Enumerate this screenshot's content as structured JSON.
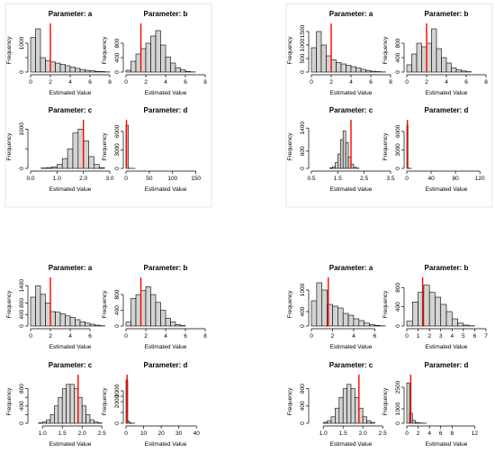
{
  "theme": {
    "bar_fill": "#d3d3d3",
    "bar_stroke": "#000000",
    "estimate_line": "#ff0000",
    "axis": "#000000",
    "panel_border": "#e6e6e6"
  },
  "chart_data": [
    {
      "type": "bar",
      "title": "Parameter: a",
      "xlabel": "Estimated Value",
      "ylabel": "Frequency",
      "bin_width": 0.5,
      "bins_start": 0,
      "values": [
        1200,
        1500,
        500,
        400,
        350,
        310,
        270,
        220,
        170,
        130,
        90,
        60,
        40,
        25,
        15,
        5
      ],
      "xlim": [
        0,
        8
      ],
      "x_ticks": [
        "0",
        "2",
        "4",
        "6",
        "8"
      ],
      "ylim": [
        0,
        1500
      ],
      "y_ticks": [
        "0",
        "",
        "1000"
      ],
      "estimate": 2
    },
    {
      "type": "bar",
      "title": "Parameter: b",
      "xlabel": "Estimated Value",
      "ylabel": "Frequency",
      "bin_width": 0.5,
      "bins_start": 0,
      "values": [
        50,
        300,
        500,
        650,
        800,
        1000,
        1150,
        750,
        420,
        250,
        120,
        60,
        20,
        5
      ],
      "xlim": [
        0,
        8
      ],
      "x_ticks": [
        "0",
        "2",
        "4",
        "6",
        "8"
      ],
      "ylim": [
        0,
        1200
      ],
      "y_ticks": [
        "0",
        "400",
        "800"
      ],
      "estimate": 1.5
    },
    {
      "type": "bar",
      "title": "Parameter: c",
      "xlabel": "Estimated Value",
      "ylabel": "Frequency",
      "bin_width": 0.2,
      "bins_start": 0.4,
      "values": [
        10,
        20,
        40,
        100,
        250,
        500,
        900,
        1000,
        700,
        300,
        100,
        20
      ],
      "xlim": [
        0,
        3
      ],
      "x_ticks": [
        "0.0",
        "1.0",
        "2.0",
        "3.0"
      ],
      "ylim": [
        0,
        1100
      ],
      "y_ticks": [
        "0",
        "",
        "1000"
      ],
      "estimate": 2
    },
    {
      "type": "bar",
      "title": "Parameter: d",
      "xlabel": "Estimated Value",
      "ylabel": "Frequency",
      "bin_width": 5,
      "bins_start": 0,
      "values": [
        7000,
        30,
        10,
        5
      ],
      "xlim": [
        0,
        170
      ],
      "x_ticks": [
        "0",
        "50",
        "100",
        "150"
      ],
      "ylim": [
        0,
        7000
      ],
      "y_ticks": [
        "0",
        "3000",
        "6000"
      ],
      "estimate": 1
    },
    {
      "type": "bar",
      "title": "Parameter: a",
      "xlabel": "Estimated Value",
      "ylabel": "Frequency",
      "bin_width": 0.5,
      "bins_start": 0,
      "values": [
        900,
        1500,
        1000,
        600,
        450,
        350,
        300,
        250,
        200,
        150,
        100,
        60,
        30,
        15,
        5
      ],
      "xlim": [
        0,
        8
      ],
      "x_ticks": [
        "0",
        "2",
        "4",
        "6",
        "8"
      ],
      "ylim": [
        0,
        1600
      ],
      "y_ticks": [
        "0",
        "500",
        "1000",
        "1500"
      ],
      "estimate": 2
    },
    {
      "type": "bar",
      "title": "Parameter: b",
      "xlabel": "Estimated Value",
      "ylabel": "Frequency",
      "bin_width": 0.5,
      "bins_start": 0,
      "values": [
        200,
        500,
        800,
        700,
        800,
        1200,
        650,
        400,
        250,
        120,
        60,
        30,
        10
      ],
      "xlim": [
        0,
        8
      ],
      "x_ticks": [
        "0",
        "2",
        "4",
        "6",
        "8"
      ],
      "ylim": [
        0,
        1200
      ],
      "y_ticks": [
        "0",
        "400",
        "800"
      ],
      "estimate": 2
    },
    {
      "type": "bar",
      "title": "Parameter: c",
      "xlabel": "Estimated Value",
      "ylabel": "Frequency",
      "bin_width": 0.1,
      "bins_start": 1.2,
      "values": [
        20,
        60,
        200,
        500,
        1000,
        1300,
        900,
        400,
        150,
        40,
        10
      ],
      "xlim": [
        0.5,
        3.5
      ],
      "x_ticks": [
        "0.5",
        "1.5",
        "2.5",
        "3.5"
      ],
      "ylim": [
        0,
        1500
      ],
      "y_ticks": [
        "0",
        "600",
        "1400"
      ],
      "estimate": 2
    },
    {
      "type": "bar",
      "title": "Parameter: d",
      "xlabel": "Estimated Value",
      "ylabel": "Frequency",
      "bin_width": 2,
      "bins_start": 0,
      "values": [
        7000,
        40,
        15,
        5
      ],
      "xlim": [
        0,
        130
      ],
      "x_ticks": [
        "0",
        "40",
        "80",
        "120"
      ],
      "ylim": [
        0,
        7000
      ],
      "y_ticks": [
        "0",
        "3000",
        "6000"
      ],
      "estimate": 1
    },
    {
      "type": "bar",
      "title": "Parameter: a",
      "xlabel": "Estimated Value",
      "ylabel": "Frequency",
      "bin_width": 0.5,
      "bins_start": 0,
      "values": [
        1000,
        1400,
        1100,
        800,
        500,
        480,
        420,
        350,
        300,
        220,
        150,
        100,
        60,
        30,
        10
      ],
      "xlim": [
        0,
        8
      ],
      "x_ticks": [
        "0",
        "2",
        "4",
        "6"
      ],
      "ylim": [
        0,
        1500
      ],
      "y_ticks": [
        "0",
        "400",
        "800",
        "1400"
      ],
      "estimate": 2
    },
    {
      "type": "bar",
      "title": "Parameter: b",
      "xlabel": "Estimated Value",
      "ylabel": "Frequency",
      "bin_width": 0.5,
      "bins_start": 0,
      "values": [
        100,
        700,
        800,
        900,
        1000,
        800,
        600,
        400,
        200,
        100,
        40,
        10
      ],
      "xlim": [
        0,
        8
      ],
      "x_ticks": [
        "0",
        "2",
        "4",
        "6",
        "8"
      ],
      "ylim": [
        0,
        1100
      ],
      "y_ticks": [
        "0",
        "400",
        "800"
      ],
      "estimate": 1.5
    },
    {
      "type": "bar",
      "title": "Parameter: c",
      "xlabel": "Estimated Value",
      "ylabel": "Frequency",
      "bin_width": 0.1,
      "bins_start": 0.9,
      "values": [
        10,
        30,
        80,
        200,
        400,
        600,
        800,
        900,
        900,
        800,
        600,
        400,
        200,
        80,
        30,
        10
      ],
      "xlim": [
        0.7,
        2.7
      ],
      "x_ticks": [
        "1.0",
        "1.5",
        "2.0",
        "2.5"
      ],
      "ylim": [
        0,
        1000
      ],
      "y_ticks": [
        "0",
        "",
        "400",
        "",
        "800"
      ],
      "estimate": 1.9
    },
    {
      "type": "bar",
      "title": "Parameter: d",
      "xlabel": "Estimated Value",
      "ylabel": "Frequency",
      "bin_width": 1,
      "bins_start": 0,
      "values": [
        4000,
        200,
        40,
        10,
        5
      ],
      "xlim": [
        0,
        45
      ],
      "x_ticks": [
        "0",
        "10",
        "20",
        "30",
        "40"
      ],
      "ylim": [
        0,
        4000
      ],
      "y_ticks": [
        "0",
        "",
        "2000",
        "",
        "3000"
      ],
      "estimate": 0.6
    },
    {
      "type": "bar",
      "title": "Parameter: a",
      "xlabel": "Estimated Value",
      "ylabel": "Frequency",
      "bin_width": 0.5,
      "bins_start": 0,
      "values": [
        700,
        1200,
        1000,
        600,
        550,
        500,
        350,
        300,
        200,
        150,
        80,
        40,
        15,
        5
      ],
      "xlim": [
        0,
        7.5
      ],
      "x_ticks": [
        "0",
        "2",
        "4",
        "6"
      ],
      "ylim": [
        0,
        1200
      ],
      "y_ticks": [
        "0",
        "400",
        "1000"
      ],
      "estimate": 1.6
    },
    {
      "type": "bar",
      "title": "Parameter: b",
      "xlabel": "Estimated Value",
      "ylabel": "Frequency",
      "bin_width": 0.5,
      "bins_start": 0,
      "values": [
        100,
        500,
        700,
        850,
        700,
        600,
        450,
        300,
        150,
        60,
        20,
        5
      ],
      "xlim": [
        0,
        7
      ],
      "x_ticks": [
        "0",
        "1",
        "2",
        "3",
        "4",
        "5",
        "6",
        "7"
      ],
      "ylim": [
        0,
        900
      ],
      "y_ticks": [
        "0",
        "400",
        "800"
      ],
      "estimate": 1.4
    },
    {
      "type": "bar",
      "title": "Parameter: c",
      "xlabel": "Estimated Value",
      "ylabel": "Frequency",
      "bin_width": 0.1,
      "bins_start": 1.0,
      "values": [
        20,
        60,
        150,
        350,
        600,
        800,
        900,
        800,
        600,
        350,
        150,
        60,
        20
      ],
      "xlim": [
        0.7,
        2.7
      ],
      "x_ticks": [
        "1.0",
        "1.5",
        "2.0",
        "2.5"
      ],
      "ylim": [
        0,
        1000
      ],
      "y_ticks": [
        "0",
        "400",
        "800"
      ],
      "estimate": 1.9
    },
    {
      "type": "bar",
      "title": "Parameter: d",
      "xlabel": "Estimated Value",
      "ylabel": "Frequency",
      "bin_width": 0.5,
      "bins_start": 0,
      "values": [
        2800,
        700,
        200,
        60,
        25,
        10,
        5
      ],
      "xlim": [
        0,
        14
      ],
      "x_ticks": [
        "0",
        "2",
        "4",
        "6",
        "8",
        "12"
      ],
      "ylim": [
        0,
        3000
      ],
      "y_ticks": [
        "0",
        "1000",
        "2500"
      ],
      "estimate": 0.7
    }
  ]
}
